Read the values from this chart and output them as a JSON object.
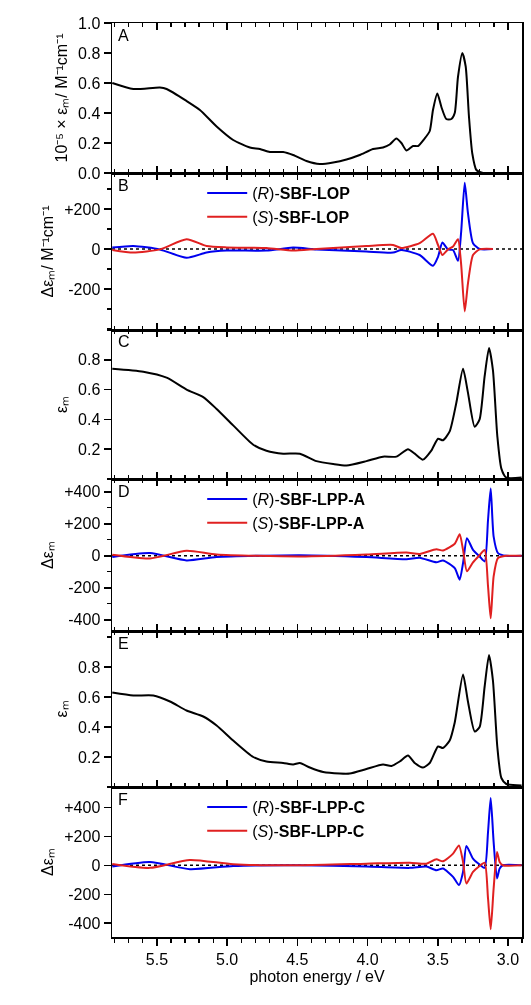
{
  "chart_data": [
    {
      "type": "line",
      "ylabel": "10⁻⁵ × εₘ/ M⁻¹cm⁻¹",
      "annotations": [
        "A"
      ],
      "xlim": [
        5.82,
        2.9
      ],
      "xticks": [
        5.5,
        5,
        4.5,
        4,
        3.5,
        3
      ],
      "ylim": [
        0,
        1
      ],
      "yticks": [
        {
          "value": 0,
          "label": "0.0"
        },
        0.2,
        0.4,
        0.6,
        0.8,
        {
          "value": 1,
          "label": "1.0"
        }
      ],
      "tick_labels": "y",
      "series": [
        {
          "color": "#000000",
          "x": [
            5.818,
            5.668,
            5.479,
            5.431,
            5.289,
            5.194,
            5.075,
            4.957,
            4.838,
            4.767,
            4.696,
            4.601,
            4.53,
            4.435,
            4.34,
            4.245,
            4.15,
            4.056,
            3.961,
            3.89,
            3.842,
            3.795,
            3.759,
            3.723,
            3.676,
            3.64,
            3.593,
            3.557,
            3.534,
            3.503,
            3.474,
            3.439,
            3.403,
            3.379,
            3.356,
            3.325,
            3.301,
            3.278,
            3.254,
            3.225,
            3.178,
            3.107
          ],
          "values": [
            0.6,
            0.56,
            0.57,
            0.56,
            0.48,
            0.42,
            0.31,
            0.22,
            0.17,
            0.16,
            0.14,
            0.14,
            0.12,
            0.08,
            0.06,
            0.07,
            0.09,
            0.12,
            0.16,
            0.17,
            0.19,
            0.23,
            0.2,
            0.15,
            0.18,
            0.18,
            0.23,
            0.28,
            0.42,
            0.53,
            0.44,
            0.36,
            0.36,
            0.4,
            0.64,
            0.8,
            0.71,
            0.38,
            0.13,
            0.02,
            0.0,
            0.0
          ]
        }
      ]
    },
    {
      "type": "line",
      "ylabel": "Δεₘ/ M⁻¹cm⁻¹",
      "annotations": [
        "B"
      ],
      "xlim": [
        5.82,
        2.9
      ],
      "xticks": [
        5.5,
        5,
        4.5,
        4,
        3.5,
        3
      ],
      "ylim": [
        -405,
        380
      ],
      "yticks": [
        {
          "value": -200,
          "label": "-200"
        },
        0,
        {
          "value": 200,
          "label": "+200"
        }
      ],
      "tick_labels": "y",
      "legend": "top",
      "ref_lines": [
        {
          "axis": "y",
          "value": 0,
          "color": "#000000",
          "line_style": "dotted"
        }
      ],
      "series": [
        {
          "name": "(R)-SBF-LOP",
          "color": "#0000ee",
          "x": [
            5.818,
            5.668,
            5.479,
            5.289,
            5.147,
            5.004,
            4.72,
            4.53,
            4.364,
            4.008,
            3.818,
            3.759,
            3.629,
            3.534,
            3.498,
            3.467,
            3.427,
            3.391,
            3.356,
            3.334,
            3.308,
            3.285,
            3.249,
            3.202,
            3.107
          ],
          "values": [
            7,
            15,
            -2,
            -44,
            -18,
            -8,
            -8,
            7,
            -2,
            -13,
            -18,
            -5,
            -30,
            -84,
            -39,
            32,
            -2,
            -5,
            -59,
            79,
            331,
            180,
            29,
            0,
            0
          ]
        },
        {
          "name": "(S)-SBF-LOP",
          "color": "#e02020",
          "x": [
            5.818,
            5.668,
            5.479,
            5.289,
            5.147,
            5.004,
            4.72,
            4.53,
            4.364,
            4.008,
            3.818,
            3.759,
            3.629,
            3.534,
            3.498,
            3.467,
            3.427,
            3.391,
            3.356,
            3.334,
            3.308,
            3.285,
            3.249,
            3.202,
            3.107
          ],
          "values": [
            -5,
            -18,
            -2,
            49,
            15,
            8,
            5,
            -8,
            0,
            15,
            20,
            5,
            29,
            76,
            20,
            -30,
            -2,
            12,
            49,
            -72,
            -312,
            -173,
            -30,
            -2,
            0
          ]
        }
      ]
    },
    {
      "type": "line",
      "ylabel": "εₘ",
      "annotations": [
        "C"
      ],
      "xlim": [
        5.82,
        2.9
      ],
      "xticks": [
        5.5,
        5,
        4.5,
        4,
        3.5,
        3
      ],
      "ylim": [
        0,
        1
      ],
      "yticks": [
        0.2,
        0.4,
        0.6,
        0.8
      ],
      "tick_labels": "y",
      "series": [
        {
          "color": "#000000",
          "x": [
            5.818,
            5.597,
            5.431,
            5.289,
            5.17,
            5.075,
            4.957,
            4.814,
            4.72,
            4.601,
            4.482,
            4.364,
            4.245,
            4.15,
            4.008,
            3.89,
            3.795,
            3.712,
            3.664,
            3.605,
            3.546,
            3.498,
            3.463,
            3.415,
            3.368,
            3.32,
            3.285,
            3.237,
            3.202,
            3.166,
            3.135,
            3.107,
            3.076,
            3.047,
            3.012,
            2.903
          ],
          "values": [
            0.74,
            0.72,
            0.68,
            0.6,
            0.55,
            0.47,
            0.36,
            0.23,
            0.19,
            0.17,
            0.17,
            0.12,
            0.1,
            0.09,
            0.12,
            0.15,
            0.15,
            0.2,
            0.17,
            0.13,
            0.19,
            0.27,
            0.26,
            0.32,
            0.51,
            0.74,
            0.58,
            0.35,
            0.4,
            0.69,
            0.88,
            0.73,
            0.29,
            0.07,
            0.01,
            0.01
          ]
        }
      ]
    },
    {
      "type": "line",
      "ylabel": "Δεₘ",
      "annotations": [
        "D"
      ],
      "xlim": [
        5.82,
        2.9
      ],
      "xticks": [
        5.5,
        5,
        4.5,
        4,
        3.5,
        3
      ],
      "ylim": [
        -470,
        480
      ],
      "yticks": [
        {
          "value": -400,
          "label": "-400"
        },
        {
          "value": -200,
          "label": "-200"
        },
        0,
        {
          "value": 200,
          "label": "+200"
        },
        {
          "value": 400,
          "label": "+400"
        }
      ],
      "tick_labels": "y",
      "legend": "top",
      "ref_lines": [
        {
          "axis": "y",
          "value": 0,
          "color": "#000000",
          "line_style": "dotted"
        }
      ],
      "series": [
        {
          "name": "(R)-SBF-LPP-A",
          "color": "#0000ee",
          "x": [
            5.818,
            5.55,
            5.289,
            5.075,
            4.482,
            4.008,
            3.723,
            3.629,
            3.51,
            3.463,
            3.379,
            3.344,
            3.32,
            3.292,
            3.249,
            3.202,
            3.166,
            3.142,
            3.123,
            3.102,
            3.071,
            3.012,
            2.903
          ],
          "values": [
            -8,
            17,
            -29,
            -8,
            4,
            -8,
            -21,
            -12,
            -41,
            -29,
            -77,
            -149,
            -46,
            110,
            37,
            -4,
            -35,
            224,
            420,
            120,
            17,
            0,
            0
          ]
        },
        {
          "name": "(S)-SBF-LPP-A",
          "color": "#e02020",
          "x": [
            5.818,
            5.55,
            5.289,
            5.075,
            4.482,
            4.008,
            3.723,
            3.629,
            3.51,
            3.463,
            3.379,
            3.344,
            3.32,
            3.292,
            3.249,
            3.202,
            3.166,
            3.142,
            3.123,
            3.102,
            3.071,
            3.012,
            2.903
          ],
          "values": [
            6,
            -17,
            31,
            8,
            -4,
            8,
            21,
            12,
            41,
            33,
            75,
            135,
            37,
            -97,
            -41,
            4,
            37,
            -190,
            -391,
            -128,
            -14,
            0,
            0
          ]
        }
      ]
    },
    {
      "type": "line",
      "ylabel": "εₘ",
      "annotations": [
        "E"
      ],
      "xlim": [
        5.82,
        2.9
      ],
      "xticks": [
        5.5,
        5,
        4.5,
        4,
        3.5,
        3
      ],
      "ylim": [
        0,
        1.04
      ],
      "yticks": [
        0.2,
        0.4,
        0.6,
        0.8
      ],
      "tick_labels": "y",
      "series": [
        {
          "color": "#000000",
          "x": [
            5.818,
            5.668,
            5.526,
            5.407,
            5.289,
            5.17,
            5.075,
            4.957,
            4.814,
            4.72,
            4.601,
            4.53,
            4.482,
            4.411,
            4.316,
            4.198,
            4.127,
            4.008,
            3.89,
            3.83,
            3.771,
            3.712,
            3.664,
            3.605,
            3.557,
            3.498,
            3.463,
            3.415,
            3.379,
            3.32,
            3.285,
            3.237,
            3.202,
            3.166,
            3.135,
            3.107,
            3.076,
            3.047,
            3.012,
            2.903
          ],
          "values": [
            0.63,
            0.61,
            0.61,
            0.57,
            0.51,
            0.47,
            0.41,
            0.31,
            0.2,
            0.17,
            0.16,
            0.15,
            0.16,
            0.13,
            0.1,
            0.09,
            0.09,
            0.12,
            0.15,
            0.14,
            0.17,
            0.21,
            0.16,
            0.13,
            0.16,
            0.27,
            0.26,
            0.31,
            0.43,
            0.75,
            0.57,
            0.37,
            0.4,
            0.67,
            0.88,
            0.71,
            0.27,
            0.06,
            0.02,
            0.01
          ]
        }
      ]
    },
    {
      "type": "line",
      "ylabel": "Δεₘ",
      "xlabel": "photon energy / eV",
      "annotations": [
        "F"
      ],
      "xlim": [
        5.82,
        2.9
      ],
      "xticks": [
        5.5,
        {
          "value": 5,
          "label": "5.0"
        },
        4.5,
        {
          "value": 4,
          "label": "4.0"
        },
        3.5,
        {
          "value": 3,
          "label": "3.0"
        }
      ],
      "ylim": [
        -495,
        540
      ],
      "yticks": [
        {
          "value": -400,
          "label": "-400"
        },
        {
          "value": -200,
          "label": "-200"
        },
        0,
        {
          "value": 200,
          "label": "+200"
        },
        {
          "value": 400,
          "label": "+400"
        }
      ],
      "legend": "top",
      "ref_lines": [
        {
          "axis": "y",
          "value": 0,
          "color": "#000000",
          "line_style": "dotted"
        }
      ],
      "series": [
        {
          "name": "(R)-SBF-LPP-C",
          "color": "#0000ee",
          "x": [
            5.818,
            5.55,
            5.265,
            4.957,
            4.482,
            4.008,
            3.7,
            3.581,
            3.51,
            3.463,
            3.391,
            3.349,
            3.32,
            3.296,
            3.249,
            3.202,
            3.166,
            3.142,
            3.123,
            3.102,
            3.078,
            3.059,
            3.036,
            2.903
          ],
          "values": [
            -9,
            23,
            -27,
            -5,
            0,
            -9,
            -18,
            -9,
            -34,
            -23,
            -80,
            -137,
            -46,
            133,
            46,
            5,
            -18,
            229,
            464,
            160,
            -91,
            -23,
            0,
            0
          ]
        },
        {
          "name": "(S)-SBF-LPP-C",
          "color": "#e02020",
          "x": [
            5.818,
            5.55,
            5.265,
            4.957,
            4.482,
            4.008,
            3.7,
            3.581,
            3.51,
            3.463,
            3.391,
            3.349,
            3.32,
            3.296,
            3.249,
            3.202,
            3.166,
            3.142,
            3.123,
            3.102,
            3.078,
            3.059,
            3.036,
            2.903
          ],
          "values": [
            9,
            -18,
            37,
            7,
            0,
            11,
            18,
            11,
            41,
            27,
            80,
            137,
            23,
            -126,
            -46,
            -5,
            18,
            -229,
            -441,
            -160,
            91,
            23,
            0,
            0
          ]
        }
      ]
    }
  ]
}
